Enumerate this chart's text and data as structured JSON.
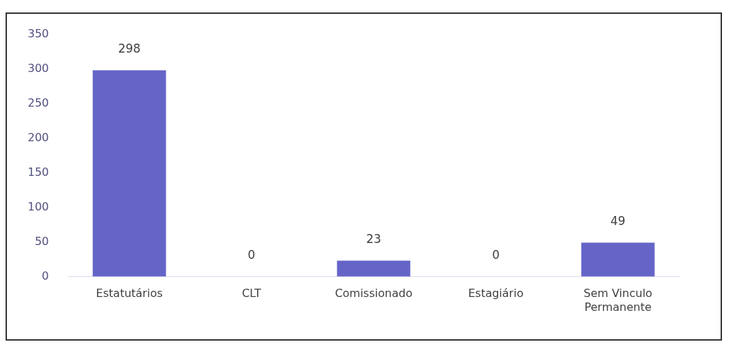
{
  "chart_data": {
    "type": "bar",
    "categories": [
      "Estatutários",
      "CLT",
      "Comissionado",
      "Estagiário",
      "Sem Vinculo\nPermanente"
    ],
    "values": [
      298,
      0,
      23,
      0,
      49
    ],
    "color": "#6565c8",
    "ylim": [
      0,
      350
    ],
    "yticks": [
      0,
      50,
      100,
      150,
      200,
      250,
      300,
      350
    ],
    "grid": false,
    "data_labels": true
  }
}
